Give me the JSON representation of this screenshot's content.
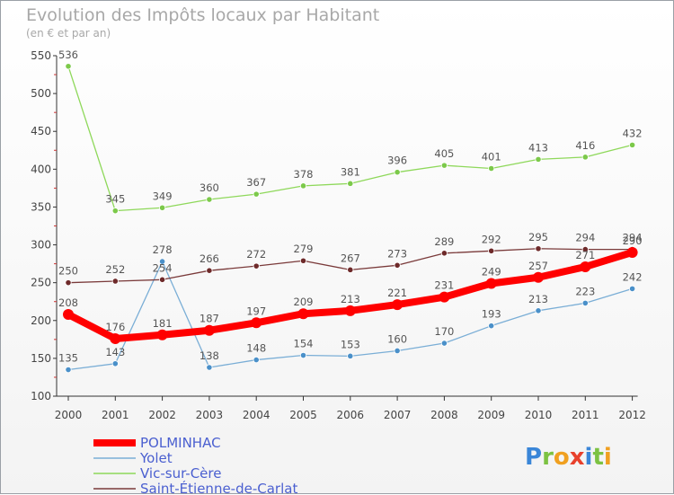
{
  "chart_data": {
    "type": "line",
    "title": "Evolution des Impôts locaux par Habitant",
    "subtitle": "(en € et par an)",
    "x": [
      "2000",
      "2001",
      "2002",
      "2003",
      "2004",
      "2005",
      "2006",
      "2007",
      "2008",
      "2009",
      "2010",
      "2011",
      "2012"
    ],
    "ylim": [
      100,
      550
    ],
    "yticks": [
      100,
      150,
      200,
      250,
      300,
      350,
      400,
      450,
      500,
      550
    ],
    "grid": false,
    "legend_position": "bottom-left",
    "series": [
      {
        "name": "Vic-sur-Cère",
        "color": "#8ed85a",
        "dot": "#7cc94a",
        "width": 1.3,
        "marker": 3.2,
        "values": [
          536,
          345,
          349,
          360,
          367,
          378,
          381,
          396,
          405,
          401,
          413,
          416,
          432
        ]
      },
      {
        "name": "Yolet",
        "color": "#7aaed6",
        "dot": "#4a90c9",
        "width": 1.3,
        "marker": 3.2,
        "values": [
          135,
          143,
          278,
          138,
          148,
          154,
          153,
          160,
          170,
          193,
          213,
          223,
          242
        ]
      },
      {
        "name": "Saint-Étienne-de-Carlat",
        "color": "#7a3a3a",
        "dot": "#6e2a2a",
        "width": 1.3,
        "marker": 3.2,
        "values": [
          250,
          252,
          254,
          266,
          272,
          279,
          267,
          273,
          289,
          292,
          295,
          294,
          294
        ]
      },
      {
        "name": "POLMINHAC",
        "color": "#ff0000",
        "dot": "#ff0000",
        "width": 8,
        "marker": 6,
        "values": [
          208,
          176,
          181,
          187,
          197,
          209,
          213,
          221,
          231,
          249,
          257,
          271,
          290
        ]
      }
    ],
    "legend_order": [
      "POLMINHAC",
      "Yolet",
      "Vic-sur-Cère",
      "Saint-Étienne-de-Carlat"
    ]
  },
  "logo": {
    "text": "Proxiti",
    "letters": [
      "P",
      "r",
      "o",
      "x",
      "i",
      "t",
      "i"
    ],
    "colors": [
      "#3a86d8",
      "#7cc242",
      "#f0a020",
      "#e8412c",
      "#3a86d8",
      "#7cc242",
      "#f0a020"
    ]
  }
}
